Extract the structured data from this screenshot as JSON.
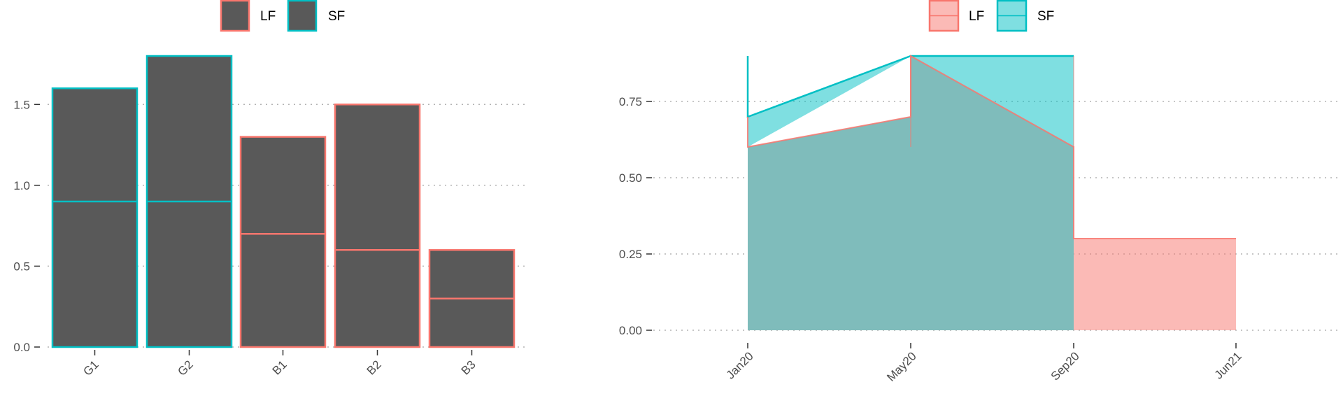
{
  "colors": {
    "LF": "#F8766D",
    "SF": "#00BFC4",
    "bar_fill": "#595959",
    "LF_area": "#F8766D",
    "SF_area": "#00BFC4",
    "overlap_area": "#7FBCBB",
    "grid": "#b3b3b3",
    "tick_text": "#4d4d4d"
  },
  "chart_data": [
    {
      "type": "bar",
      "stacked": true,
      "categories": [
        "G1",
        "G2",
        "B1",
        "B2",
        "B3"
      ],
      "bars": [
        {
          "category": "G1",
          "group": "SF",
          "segments": [
            0.9,
            0.7
          ],
          "total": 1.6
        },
        {
          "category": "G2",
          "group": "SF",
          "segments": [
            0.9,
            0.9
          ],
          "total": 1.8
        },
        {
          "category": "B1",
          "group": "LF",
          "segments": [
            0.7,
            0.6
          ],
          "total": 1.3
        },
        {
          "category": "B2",
          "group": "LF",
          "segments": [
            0.6,
            0.9
          ],
          "total": 1.5
        },
        {
          "category": "B3",
          "group": "LF",
          "segments": [
            0.3,
            0.3
          ],
          "total": 0.6
        }
      ],
      "legend": [
        "LF",
        "SF"
      ],
      "legend_position": "top",
      "y_ticks": [
        "0.0",
        "0.5",
        "1.0",
        "1.5"
      ],
      "y_tick_values": [
        0,
        0.5,
        1.0,
        1.5
      ],
      "ylim": [
        0,
        1.8
      ],
      "grid": "horizontal dotted",
      "title": "",
      "xlabel": "",
      "ylabel": ""
    },
    {
      "type": "area",
      "x_ticks": [
        "Jan20",
        "May20",
        "Sep20",
        "Jun21"
      ],
      "x_tick_dates": [
        "2020-01-01",
        "2020-05-01",
        "2020-09-01",
        "2021-06-01"
      ],
      "series": [
        {
          "name": "LF",
          "points": [
            {
              "x": "2020-01-01",
              "y": 0.6
            },
            {
              "x": "2020-05-01",
              "y": 0.7
            },
            {
              "x": "2020-05-01",
              "y": 0.9
            },
            {
              "x": "2020-09-01",
              "y": 0.6
            },
            {
              "x": "2020-09-01",
              "y": 0.3
            },
            {
              "x": "2021-06-01",
              "y": 0.3
            }
          ]
        },
        {
          "name": "SF",
          "points": [
            {
              "x": "2020-01-01",
              "y": 0.9
            },
            {
              "x": "2020-01-01",
              "y": 0.7
            },
            {
              "x": "2020-05-01",
              "y": 0.9
            },
            {
              "x": "2020-09-01",
              "y": 0.9
            }
          ]
        }
      ],
      "legend": [
        "LF",
        "SF"
      ],
      "legend_position": "top",
      "y_ticks": [
        "0.00",
        "0.25",
        "0.50",
        "0.75"
      ],
      "y_tick_values": [
        0,
        0.25,
        0.5,
        0.75
      ],
      "ylim": [
        0,
        0.9
      ],
      "grid": "horizontal dotted",
      "title": "",
      "xlabel": "",
      "ylabel": ""
    }
  ]
}
